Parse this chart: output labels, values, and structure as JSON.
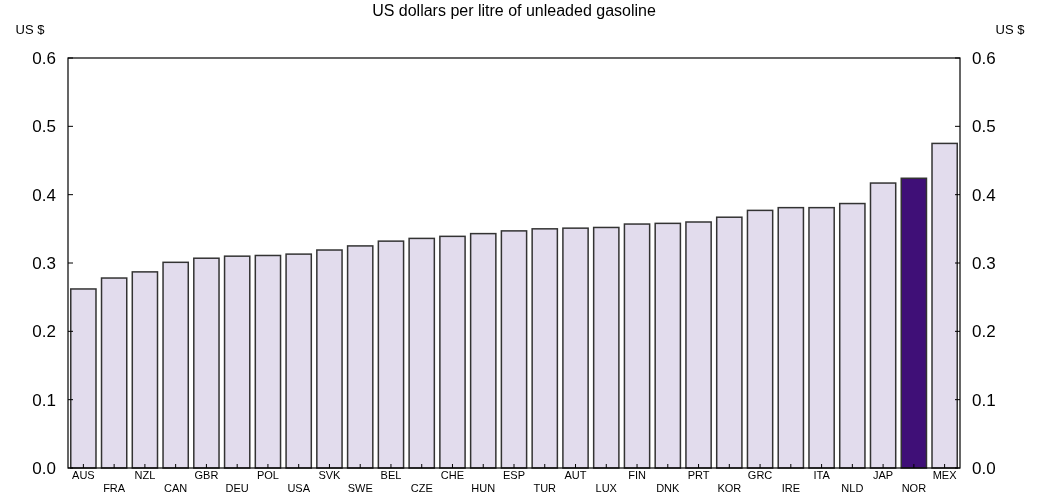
{
  "chart_data": {
    "type": "bar",
    "title": "US dollars per litre of unleaded gasoline",
    "ylabel": "US $",
    "y2label": "US $",
    "categories": [
      "AUS",
      "FRA",
      "NZL",
      "CAN",
      "GBR",
      "DEU",
      "POL",
      "USA",
      "SVK",
      "SWE",
      "BEL",
      "CZE",
      "CHE",
      "HUN",
      "ESP",
      "TUR",
      "AUT",
      "LUX",
      "FIN",
      "DNK",
      "PRT",
      "KOR",
      "GRC",
      "IRE",
      "ITA",
      "NLD",
      "JAP",
      "NOR",
      "MEX"
    ],
    "values": [
      0.262,
      0.278,
      0.287,
      0.301,
      0.307,
      0.31,
      0.311,
      0.313,
      0.319,
      0.325,
      0.332,
      0.336,
      0.339,
      0.343,
      0.347,
      0.35,
      0.351,
      0.352,
      0.357,
      0.358,
      0.36,
      0.367,
      0.377,
      0.381,
      0.381,
      0.387,
      0.417,
      0.424,
      0.475
    ],
    "colors": [
      "#e2dced",
      "#e2dced",
      "#e2dced",
      "#e2dced",
      "#e2dced",
      "#e2dced",
      "#e2dced",
      "#e2dced",
      "#e2dced",
      "#e2dced",
      "#e2dced",
      "#e2dced",
      "#e2dced",
      "#e2dced",
      "#e2dced",
      "#e2dced",
      "#e2dced",
      "#e2dced",
      "#e2dced",
      "#e2dced",
      "#e2dced",
      "#e2dced",
      "#e2dced",
      "#e2dced",
      "#e2dced",
      "#e2dced",
      "#e2dced",
      "#3f0f77",
      "#e2dced"
    ],
    "ylim": [
      0,
      0.6
    ],
    "yticks": [
      {
        "value": 0,
        "label": "0.0"
      },
      0.1,
      0.2,
      0.3,
      0.4,
      0.5,
      0.6
    ],
    "y2lim": [
      0,
      0.6
    ],
    "y2ticks": [
      {
        "value": 0,
        "label": "0.0"
      },
      0.1,
      0.2,
      0.3,
      0.4,
      0.5,
      0.6
    ],
    "grid": false
  }
}
